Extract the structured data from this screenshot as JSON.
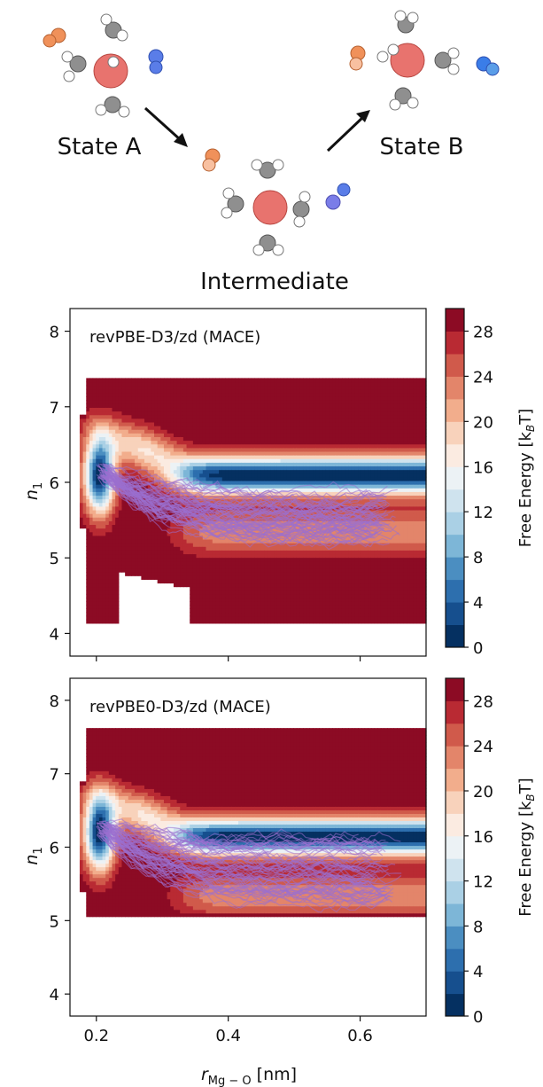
{
  "schematic": {
    "state_a": "State A",
    "state_b": "State B",
    "intermediate": "Intermediate"
  },
  "colorbar": {
    "label": "Free Energy [k",
    "label_sub": "B",
    "label_end": "T]",
    "ticks": [
      0,
      4,
      8,
      12,
      16,
      20,
      24,
      28
    ],
    "levels": [
      0,
      2,
      4,
      6,
      8,
      10,
      12,
      14,
      16,
      18,
      20,
      22,
      24,
      26,
      28,
      30
    ],
    "colors": [
      "#053061",
      "#164f8e",
      "#2d6fae",
      "#4b8ec1",
      "#7db6d7",
      "#aad0e5",
      "#cfe3ee",
      "#ecf2f5",
      "#fbebe1",
      "#f8d2bb",
      "#f2ad8c",
      "#e3856a",
      "#d05a4b",
      "#b92a33",
      "#8c0b24"
    ]
  },
  "chart_data": [
    {
      "type": "heatmap",
      "title": "revPBE-D3/zd (MACE)",
      "xlabel": "r",
      "xlabel_sub": "Mg − O",
      "xlabel_unit": "[nm]",
      "ylabel": "n",
      "ylabel_sub": "1",
      "xlim": [
        0.16,
        0.7
      ],
      "ylim": [
        3.7,
        8.3
      ],
      "xticks": [
        0.2,
        0.4,
        0.6
      ],
      "yticks": [
        4,
        5,
        6,
        7,
        8
      ],
      "basin_minimum": {
        "x": 0.55,
        "y": 6.1
      },
      "secondary_minimum": {
        "x": 0.2,
        "y": 6.1
      },
      "trajectory_color": "#9b6fd0"
    },
    {
      "type": "heatmap",
      "title": "revPBE0-D3/zd (MACE)",
      "xlabel": "r",
      "xlabel_sub": "Mg − O",
      "xlabel_unit": "[nm]",
      "ylabel": "n",
      "ylabel_sub": "1",
      "xlim": [
        0.16,
        0.7
      ],
      "ylim": [
        3.7,
        8.3
      ],
      "xticks": [
        0.2,
        0.4,
        0.6
      ],
      "xticklabels": [
        "0.2",
        "0.4",
        "0.6"
      ],
      "yticks": [
        4,
        5,
        6,
        7,
        8
      ],
      "basin_minimum": {
        "x": 0.55,
        "y": 6.15
      },
      "secondary_minimum": {
        "x": 0.2,
        "y": 6.2
      },
      "trajectory_color": "#9b6fd0"
    }
  ]
}
